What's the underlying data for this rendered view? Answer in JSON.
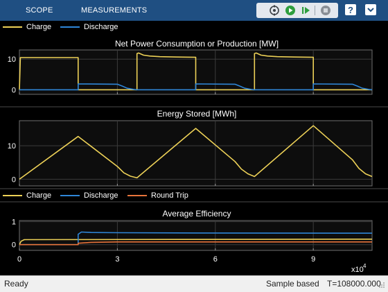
{
  "toolbar": {
    "tabs": [
      "SCOPE",
      "MEASUREMENTS"
    ],
    "tools": [
      "stepping-options-icon",
      "run-icon",
      "step-forward-icon",
      "stop-icon",
      "help-icon",
      "expand-icon"
    ],
    "colors": {
      "bar": "#1f4f82",
      "run": "#2e9e3e",
      "stop": "#8a8f96"
    }
  },
  "legends": {
    "top": [
      "Charge",
      "Discharge"
    ],
    "bottom": [
      "Charge",
      "Discharge",
      "Round Trip"
    ]
  },
  "status": {
    "left": "Ready",
    "mode": "Sample based",
    "time": "T=108000.000"
  },
  "colors": {
    "charge": "#edd157",
    "discharge": "#2f86d8",
    "round_trip": "#e8743b",
    "axes_bg": "#0d0d0d",
    "grid": "#3c3c3c",
    "text": "#ffffff"
  },
  "chart_data": [
    {
      "type": "line",
      "title": "Net Power Consumption or Production [MW]",
      "xlim": [
        0,
        108000
      ],
      "ylim": [
        -1.5,
        13
      ],
      "xticks": [
        0,
        30000,
        60000,
        90000
      ],
      "yticks": [
        0,
        10
      ],
      "ytick_labels": [
        "0",
        "10"
      ],
      "grid": true,
      "series": [
        {
          "name": "Charge",
          "color": "#edd157",
          "x": [
            0,
            300,
            18000,
            18001,
            36000,
            36001,
            36500,
            38000,
            40000,
            43000,
            48000,
            54000,
            54001,
            72000,
            72001,
            72500,
            74000,
            76000,
            79000,
            84000,
            90000,
            90001,
            108000
          ],
          "y": [
            0,
            10.5,
            10.5,
            0,
            0,
            11.8,
            12,
            11.3,
            11,
            10.8,
            10.7,
            10.6,
            0,
            0,
            11.8,
            12,
            11.3,
            11,
            10.8,
            10.7,
            10.6,
            0,
            0
          ]
        },
        {
          "name": "Discharge",
          "color": "#2f86d8",
          "x": [
            0,
            18000,
            18001,
            30000,
            31500,
            33000,
            35000,
            36000,
            54000,
            54001,
            66000,
            67500,
            69000,
            71000,
            72000,
            90000,
            90001,
            102000,
            103500,
            105000,
            107000,
            108000
          ],
          "y": [
            0,
            0,
            1.9,
            1.8,
            1.2,
            0.5,
            0.1,
            0,
            0,
            1.9,
            1.8,
            1.2,
            0.5,
            0.1,
            0,
            0,
            1.9,
            1.8,
            1.2,
            0.5,
            0.1,
            0
          ]
        }
      ]
    },
    {
      "type": "line",
      "title": "Energy Stored [MWh]",
      "xlim": [
        0,
        108000
      ],
      "ylim": [
        -2,
        17.5
      ],
      "xticks": [
        0,
        30000,
        60000,
        90000
      ],
      "yticks": [
        0,
        10
      ],
      "ytick_labels": [
        "0",
        "10"
      ],
      "grid": true,
      "series": [
        {
          "name": "Energy Stored",
          "color": "#edd157",
          "x": [
            0,
            18000,
            30000,
            32000,
            34000,
            36000,
            54000,
            66000,
            68000,
            70000,
            72000,
            90000,
            102000,
            104000,
            106000,
            108000
          ],
          "y": [
            0,
            12.8,
            3.8,
            1.9,
            0.9,
            0.4,
            15.2,
            5.3,
            3.0,
            1.6,
            0.8,
            16.0,
            5.8,
            3.2,
            1.6,
            0.8
          ]
        }
      ]
    },
    {
      "type": "line",
      "title": "Average Efficiency",
      "xlim": [
        0,
        108000
      ],
      "ylim": [
        -0.25,
        1.05
      ],
      "xticks": [
        0,
        30000,
        60000,
        90000
      ],
      "xtick_labels": [
        "0",
        "3",
        "6",
        "9"
      ],
      "xscale_label": "x10",
      "xscale_exp": "4",
      "yticks": [
        0,
        1
      ],
      "ytick_labels": [
        "0",
        "1"
      ],
      "grid": true,
      "series": [
        {
          "name": "Charge",
          "color": "#edd157",
          "x": [
            0,
            500,
            1500,
            108000
          ],
          "y": [
            0,
            0.15,
            0.22,
            0.24
          ]
        },
        {
          "name": "Discharge",
          "color": "#2f86d8",
          "x": [
            0,
            18000,
            18001,
            19000,
            22000,
            30000,
            54000,
            108000
          ],
          "y": [
            0,
            0,
            0.45,
            0.55,
            0.53,
            0.52,
            0.51,
            0.5
          ]
        },
        {
          "name": "Round Trip",
          "color": "#e8743b",
          "x": [
            0,
            18000,
            18001,
            22000,
            30000,
            54000,
            108000
          ],
          "y": [
            0,
            0,
            0.06,
            0.1,
            0.12,
            0.12,
            0.12
          ]
        }
      ]
    }
  ]
}
